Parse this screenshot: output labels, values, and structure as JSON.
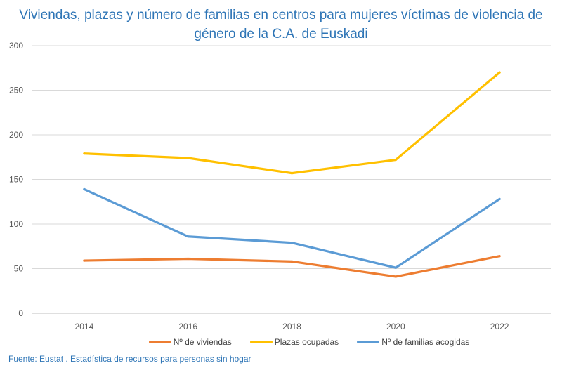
{
  "chart_data": {
    "type": "line",
    "title": "Viviendas, plazas y número de familias en centros para mujeres víctimas de violencia de género de la C.A. de Euskadi",
    "categories": [
      "2014",
      "2016",
      "2018",
      "2020",
      "2022"
    ],
    "ylim": [
      0,
      300
    ],
    "yticks": [
      0,
      50,
      100,
      150,
      200,
      250,
      300
    ],
    "grid": true,
    "legend": "bottom",
    "series": [
      {
        "name": "Nº de viviendas",
        "color": "#ed7d31",
        "values": [
          59,
          61,
          58,
          41,
          64
        ]
      },
      {
        "name": "Plazas ocupadas",
        "color": "#ffc000",
        "values": [
          179,
          174,
          157,
          172,
          270
        ]
      },
      {
        "name": "Nº de familias acogidas",
        "color": "#5b9bd5",
        "values": [
          139,
          86,
          79,
          51,
          128
        ]
      }
    ]
  },
  "source": "Fuente: Eustat . Estadística de recursos para personas sin hogar"
}
